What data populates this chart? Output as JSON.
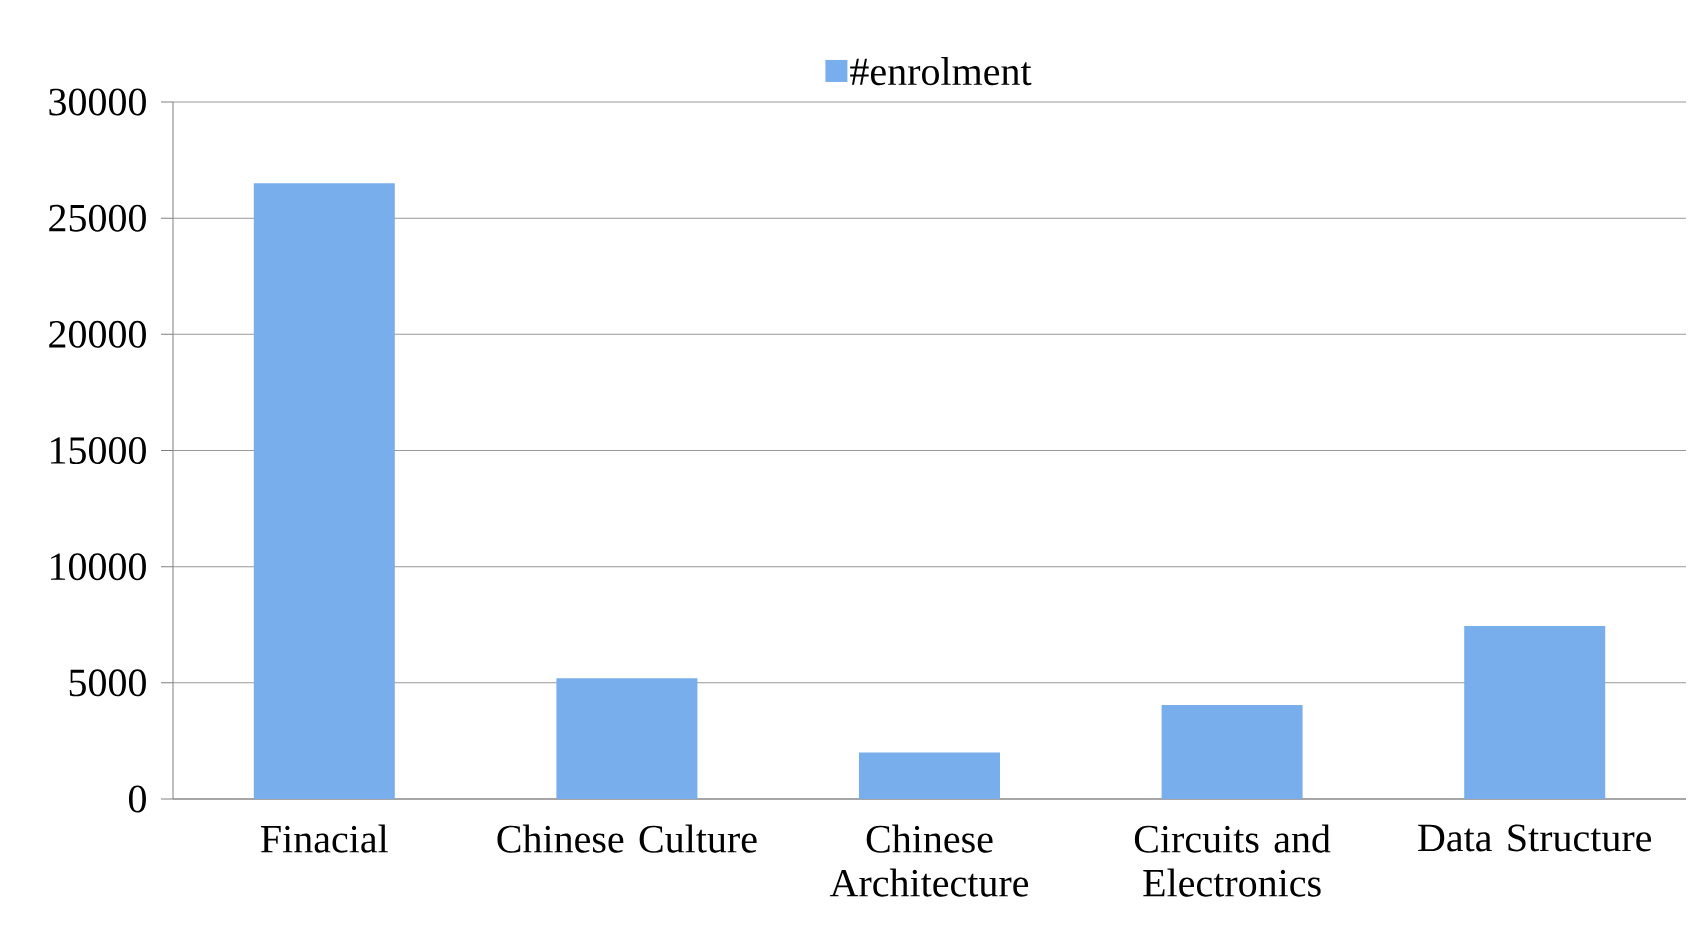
{
  "chart_data": {
    "type": "bar",
    "categories": [
      "Finacial",
      "Chinese Culture",
      "Chinese Architecture",
      "Circuits and Electronics",
      "Data Structure"
    ],
    "series": [
      {
        "name": "#enrolment",
        "color": "#78aeeb",
        "values": [
          26500,
          5200,
          2000,
          4050,
          7450
        ]
      }
    ],
    "ylim": [
      0,
      30000
    ],
    "yticks": [
      0,
      5000,
      10000,
      15000,
      20000,
      25000,
      30000
    ],
    "grid": "y",
    "legend": "top"
  }
}
